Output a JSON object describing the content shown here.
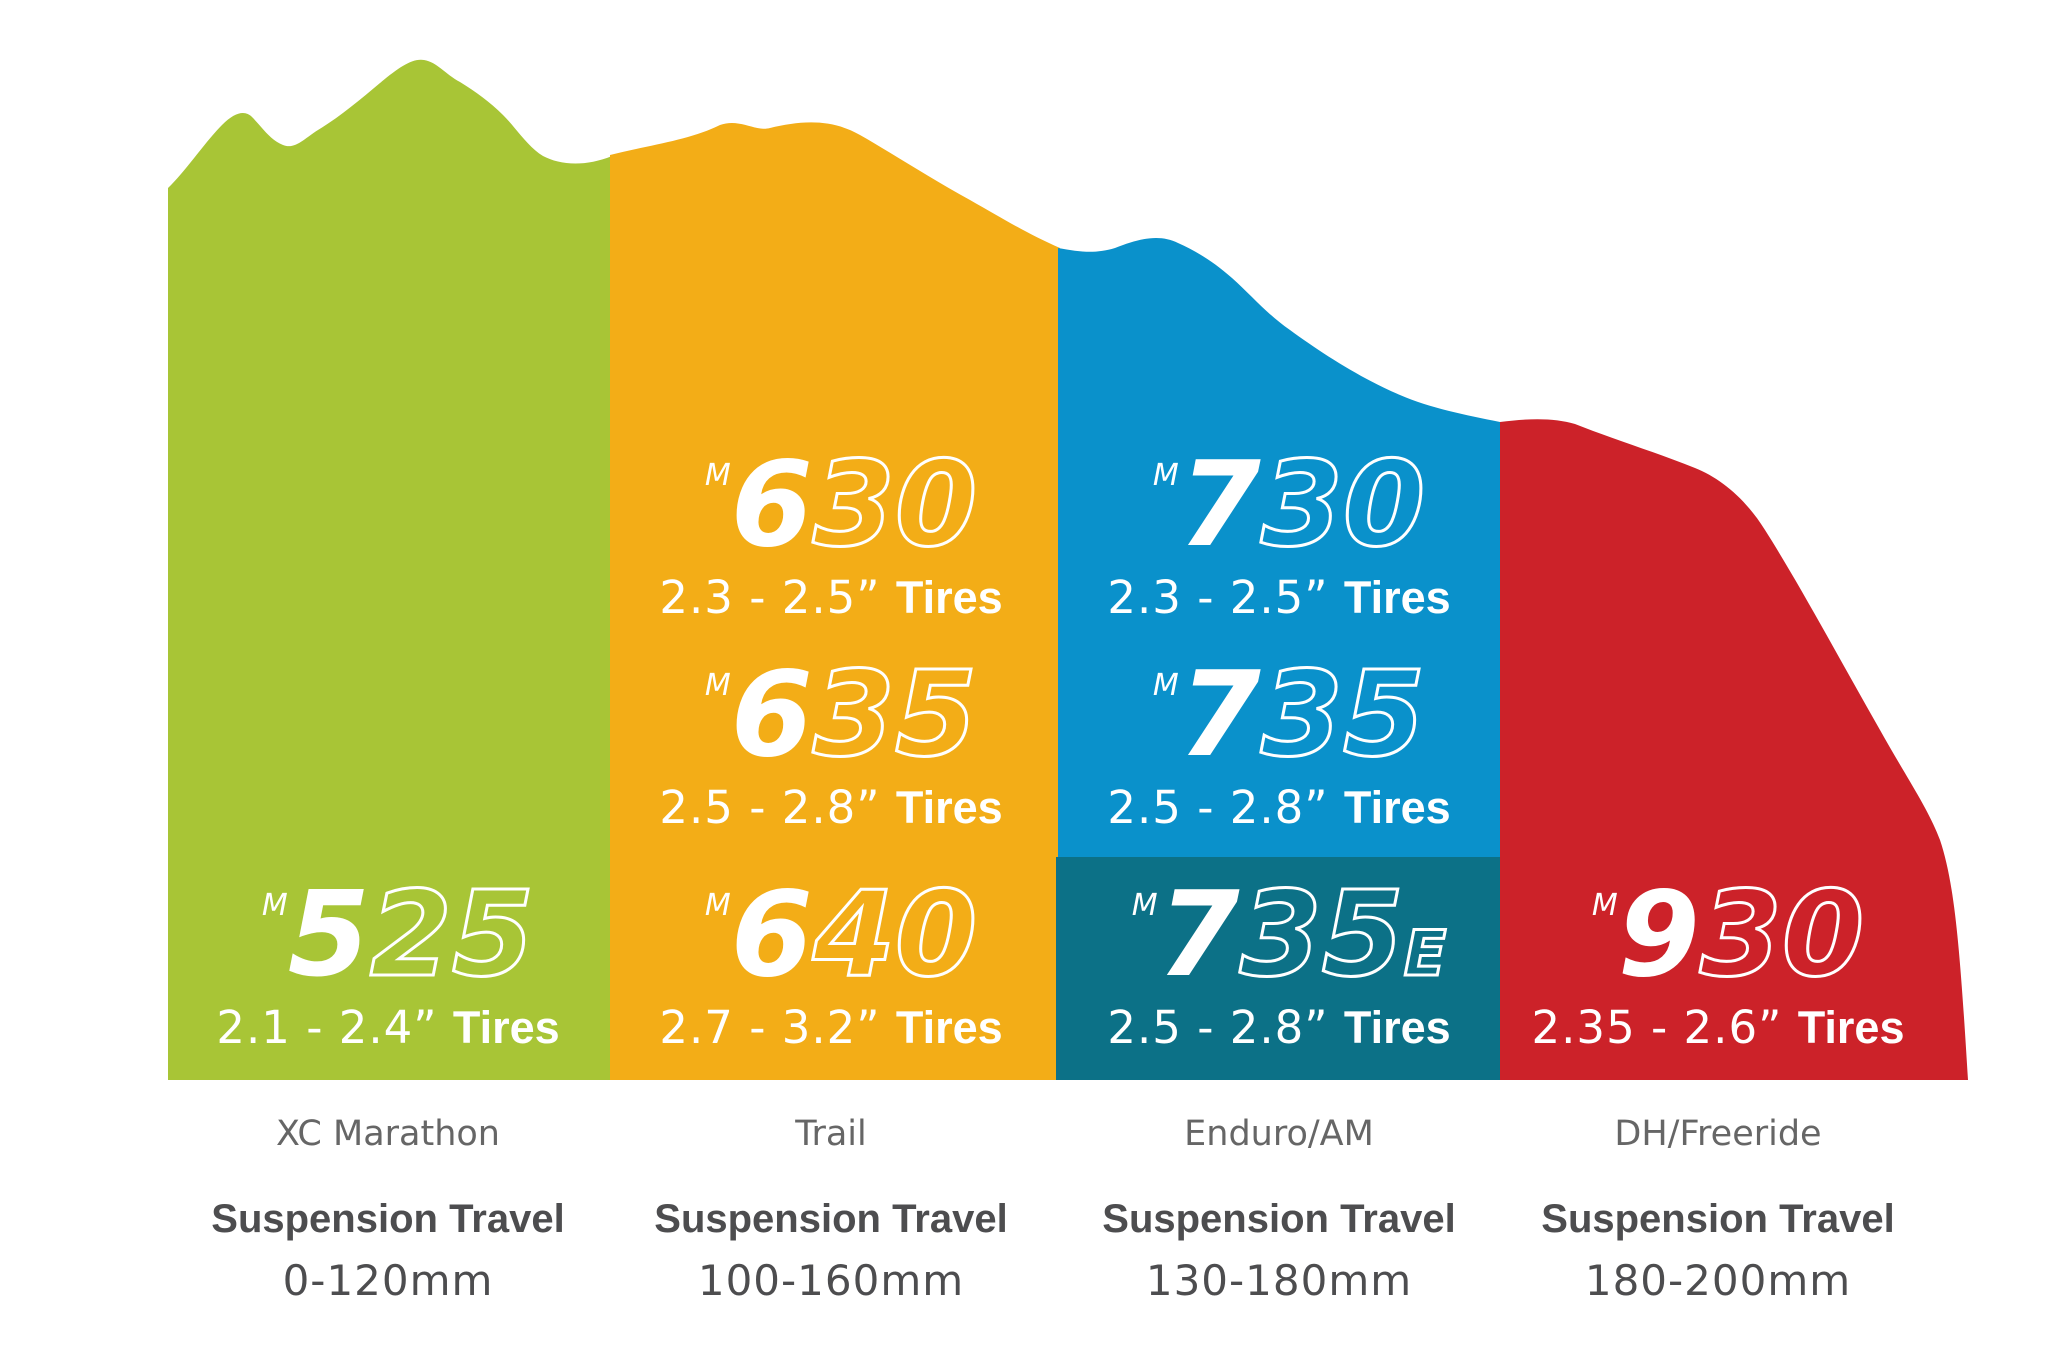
{
  "colors": {
    "green": "#a8c536",
    "orange": "#f3ad17",
    "blue": "#0a91cb",
    "teal": "#0c7187",
    "red": "#cc2229",
    "white": "#ffffff",
    "text_gray": "#4d4d4f",
    "label_gray": "#666666"
  },
  "columns": [
    {
      "category": "XC Marathon",
      "travel_label": "Suspension Travel",
      "travel_value": "0-120mm",
      "models": [
        {
          "prefix": "M",
          "main": "5",
          "rest": "25",
          "suffix": "",
          "range": "2.1 - 2.4”",
          "tires": "Tires"
        }
      ]
    },
    {
      "category": "Trail",
      "travel_label": "Suspension Travel",
      "travel_value": "100-160mm",
      "models": [
        {
          "prefix": "M",
          "main": "6",
          "rest": "30",
          "suffix": "",
          "range": "2.3 - 2.5”",
          "tires": "Tires"
        },
        {
          "prefix": "M",
          "main": "6",
          "rest": "35",
          "suffix": "",
          "range": "2.5 - 2.8”",
          "tires": "Tires"
        },
        {
          "prefix": "M",
          "main": "6",
          "rest": "40",
          "suffix": "",
          "range": "2.7 - 3.2”",
          "tires": "Tires"
        }
      ]
    },
    {
      "category": "Enduro/AM",
      "travel_label": "Suspension Travel",
      "travel_value": "130-180mm",
      "models": [
        {
          "prefix": "M",
          "main": "7",
          "rest": "30",
          "suffix": "",
          "range": "2.3 - 2.5”",
          "tires": "Tires"
        },
        {
          "prefix": "M",
          "main": "7",
          "rest": "35",
          "suffix": "",
          "range": "2.5 - 2.8”",
          "tires": "Tires"
        },
        {
          "prefix": "M",
          "main": "7",
          "rest": "35",
          "suffix": "E",
          "range": "2.5 - 2.8”",
          "tires": "Tires"
        }
      ]
    },
    {
      "category": "DH/Freeride",
      "travel_label": "Suspension Travel",
      "travel_value": "180-200mm",
      "models": [
        {
          "prefix": "M",
          "main": "9",
          "rest": "30",
          "suffix": "",
          "range": "2.35 - 2.6”",
          "tires": "Tires"
        }
      ]
    }
  ]
}
